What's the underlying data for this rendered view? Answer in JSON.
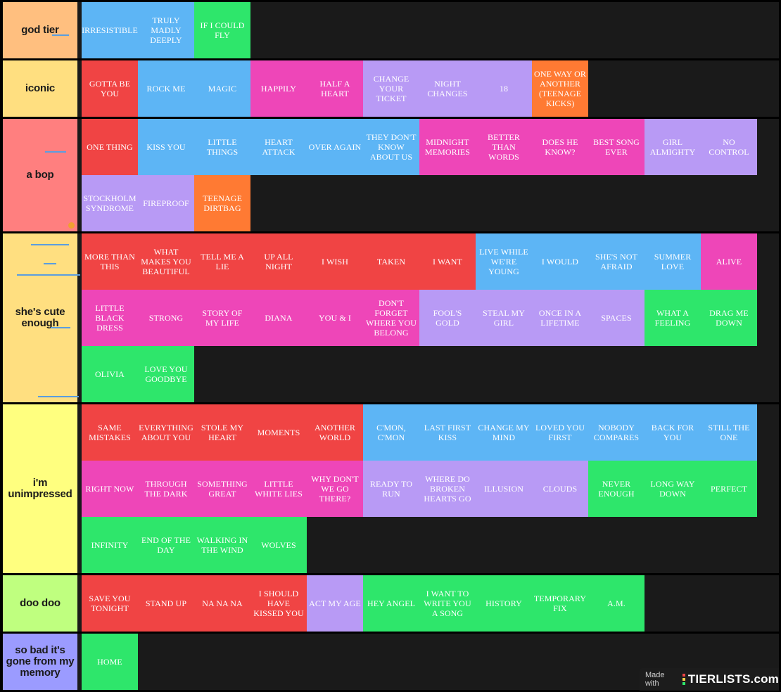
{
  "tiers": [
    {
      "label": "god tier",
      "color": "#ffbf7f",
      "items": [
        {
          "name": "Irresistible",
          "color": "#5db5f5"
        },
        {
          "name": "Truly Madly Deeply",
          "color": "#5db5f5"
        },
        {
          "name": "If I Could Fly",
          "color": "#2ee66b"
        }
      ]
    },
    {
      "label": "iconic",
      "color": "#ffdf80",
      "items": [
        {
          "name": "Gotta Be You",
          "color": "#f04444"
        },
        {
          "name": "Rock Me",
          "color": "#5db5f5"
        },
        {
          "name": "Magic",
          "color": "#5db5f5"
        },
        {
          "name": "Happily",
          "color": "#ee46b8"
        },
        {
          "name": "Half a Heart",
          "color": "#ee46b8"
        },
        {
          "name": "Change Your Ticket",
          "color": "#b89af5"
        },
        {
          "name": "Night Changes",
          "color": "#b89af5"
        },
        {
          "name": "18",
          "color": "#b89af5"
        },
        {
          "name": "One Way or Another (Teenage Kicks)",
          "color": "#ff7a33"
        }
      ]
    },
    {
      "label": "a  bop",
      "color": "#ff7f7f",
      "items": [
        {
          "name": "One Thing",
          "color": "#f04444"
        },
        {
          "name": "Kiss You",
          "color": "#5db5f5"
        },
        {
          "name": "Little Things",
          "color": "#5db5f5"
        },
        {
          "name": "Heart Attack",
          "color": "#5db5f5"
        },
        {
          "name": "Over Again",
          "color": "#5db5f5"
        },
        {
          "name": "They Don't Know About Us",
          "color": "#5db5f5"
        },
        {
          "name": "Midnight Memories",
          "color": "#ee46b8"
        },
        {
          "name": "Better Than Words",
          "color": "#ee46b8"
        },
        {
          "name": "Does He Know?",
          "color": "#ee46b8"
        },
        {
          "name": "Best Song Ever",
          "color": "#ee46b8"
        },
        {
          "name": "Girl Almighty",
          "color": "#b89af5"
        },
        {
          "name": "No Control",
          "color": "#b89af5"
        },
        {
          "name": "Stockholm Syndrome",
          "color": "#b89af5"
        },
        {
          "name": "Fireproof",
          "color": "#b89af5"
        },
        {
          "name": "Teenage Dirtbag",
          "color": "#ff7a33"
        }
      ]
    },
    {
      "label": "she's cute enough",
      "color": "#ffdf80",
      "items": [
        {
          "name": "More Than This",
          "color": "#f04444"
        },
        {
          "name": "What Makes You Beautiful",
          "color": "#f04444"
        },
        {
          "name": "Tell Me a Lie",
          "color": "#f04444"
        },
        {
          "name": "Up All Night",
          "color": "#f04444"
        },
        {
          "name": "I Wish",
          "color": "#f04444"
        },
        {
          "name": "Taken",
          "color": "#f04444"
        },
        {
          "name": "I Want",
          "color": "#f04444"
        },
        {
          "name": "Live While We're Young",
          "color": "#5db5f5"
        },
        {
          "name": "I Would",
          "color": "#5db5f5"
        },
        {
          "name": "She's Not Afraid",
          "color": "#5db5f5"
        },
        {
          "name": "Summer Love",
          "color": "#5db5f5"
        },
        {
          "name": "Alive",
          "color": "#ee46b8"
        },
        {
          "name": "Little Black Dress",
          "color": "#ee46b8"
        },
        {
          "name": "Strong",
          "color": "#ee46b8"
        },
        {
          "name": "Story of My Life",
          "color": "#ee46b8"
        },
        {
          "name": "Diana",
          "color": "#ee46b8"
        },
        {
          "name": "You & I",
          "color": "#ee46b8"
        },
        {
          "name": "Don't Forget Where You Belong",
          "color": "#ee46b8"
        },
        {
          "name": "Fool's Gold",
          "color": "#b89af5"
        },
        {
          "name": "Steal My Girl",
          "color": "#b89af5"
        },
        {
          "name": "Once in a Lifetime",
          "color": "#b89af5"
        },
        {
          "name": "Spaces",
          "color": "#b89af5"
        },
        {
          "name": "What a Feeling",
          "color": "#2ee66b"
        },
        {
          "name": "Drag Me Down",
          "color": "#2ee66b"
        },
        {
          "name": "Olivia",
          "color": "#2ee66b"
        },
        {
          "name": "Love You Goodbye",
          "color": "#2ee66b"
        }
      ]
    },
    {
      "label": "i'm unimpressed",
      "color": "#ffff7f",
      "items": [
        {
          "name": "Same Mistakes",
          "color": "#f04444"
        },
        {
          "name": "Everything About You",
          "color": "#f04444"
        },
        {
          "name": "Stole My Heart",
          "color": "#f04444"
        },
        {
          "name": "Moments",
          "color": "#f04444"
        },
        {
          "name": "Another World",
          "color": "#f04444"
        },
        {
          "name": "C'mon, C'mon",
          "color": "#5db5f5"
        },
        {
          "name": "Last First Kiss",
          "color": "#5db5f5"
        },
        {
          "name": "Change My Mind",
          "color": "#5db5f5"
        },
        {
          "name": "Loved You First",
          "color": "#5db5f5"
        },
        {
          "name": "Nobody Compares",
          "color": "#5db5f5"
        },
        {
          "name": "Back for You",
          "color": "#5db5f5"
        },
        {
          "name": "Still the One",
          "color": "#5db5f5"
        },
        {
          "name": "Right Now",
          "color": "#ee46b8"
        },
        {
          "name": "Through the Dark",
          "color": "#ee46b8"
        },
        {
          "name": "Something Great",
          "color": "#ee46b8"
        },
        {
          "name": "Little White Lies",
          "color": "#ee46b8"
        },
        {
          "name": "Why Don't We Go There?",
          "color": "#ee46b8"
        },
        {
          "name": "Ready to Run",
          "color": "#b89af5"
        },
        {
          "name": "Where Do Broken Hearts Go",
          "color": "#b89af5"
        },
        {
          "name": "Illusion",
          "color": "#b89af5"
        },
        {
          "name": "Clouds",
          "color": "#b89af5"
        },
        {
          "name": "Never Enough",
          "color": "#2ee66b"
        },
        {
          "name": "Long Way Down",
          "color": "#2ee66b"
        },
        {
          "name": "Perfect",
          "color": "#2ee66b"
        },
        {
          "name": "Infinity",
          "color": "#2ee66b"
        },
        {
          "name": "End of the Day",
          "color": "#2ee66b"
        },
        {
          "name": "Walking in the Wind",
          "color": "#2ee66b"
        },
        {
          "name": "Wolves",
          "color": "#2ee66b"
        }
      ]
    },
    {
      "label": "doo doo",
      "color": "#bfff7f",
      "items": [
        {
          "name": "Save You Tonight",
          "color": "#f04444"
        },
        {
          "name": "Stand Up",
          "color": "#f04444"
        },
        {
          "name": "Na Na Na",
          "color": "#f04444"
        },
        {
          "name": "I Should Have Kissed You",
          "color": "#f04444"
        },
        {
          "name": "Act My Age",
          "color": "#b89af5"
        },
        {
          "name": "Hey Angel",
          "color": "#2ee66b"
        },
        {
          "name": "I Want to Write You a Song",
          "color": "#2ee66b"
        },
        {
          "name": "History",
          "color": "#2ee66b"
        },
        {
          "name": "Temporary Fix",
          "color": "#2ee66b"
        },
        {
          "name": "A.M.",
          "color": "#2ee66b"
        }
      ]
    },
    {
      "label": "so bad it's gone from my memory",
      "color": "#9b9bff",
      "items": [
        {
          "name": "Home",
          "color": "#2ee66b"
        }
      ]
    }
  ],
  "watermark": {
    "prefix": "Made with",
    "brand": "TIERLISTS.com",
    "bar_colors": [
      "#f04444",
      "#ffd24a",
      "#2ee66b"
    ]
  }
}
